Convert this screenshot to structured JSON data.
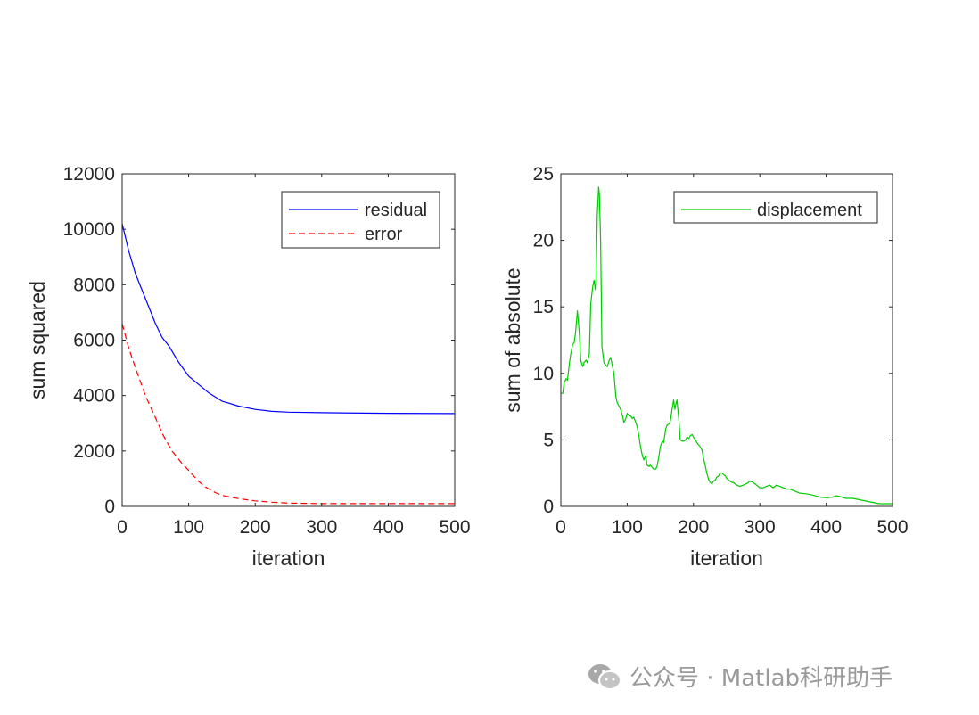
{
  "chart_data": [
    {
      "type": "line",
      "xlabel": "iteration",
      "ylabel": "sum squared",
      "xlim": [
        0,
        500
      ],
      "ylim": [
        0,
        12000
      ],
      "xticks": [
        0,
        100,
        200,
        300,
        400,
        500
      ],
      "yticks": [
        0,
        2000,
        4000,
        6000,
        8000,
        10000,
        12000
      ],
      "grid": false,
      "legend": "top-right",
      "series": [
        {
          "name": "residual",
          "color": "#0000ff",
          "style": "solid",
          "x": [
            0,
            10,
            20,
            35,
            50,
            60,
            70,
            85,
            100,
            115,
            130,
            150,
            175,
            200,
            225,
            250,
            300,
            400,
            500
          ],
          "y": [
            10200,
            9200,
            8400,
            7500,
            6600,
            6100,
            5800,
            5200,
            4700,
            4400,
            4100,
            3800,
            3620,
            3500,
            3430,
            3400,
            3380,
            3360,
            3350
          ]
        },
        {
          "name": "error",
          "color": "#ff0000",
          "style": "dashed",
          "x": [
            0,
            10,
            20,
            35,
            50,
            62,
            75,
            90,
            100,
            115,
            125,
            140,
            150,
            175,
            200,
            225,
            250,
            300,
            400,
            500
          ],
          "y": [
            6600,
            5700,
            5000,
            4000,
            3200,
            2550,
            2000,
            1550,
            1300,
            900,
            700,
            500,
            400,
            280,
            200,
            150,
            120,
            100,
            100,
            100
          ]
        }
      ]
    },
    {
      "type": "line",
      "xlabel": "iteration",
      "ylabel": "sum of absolute",
      "xlim": [
        0,
        500
      ],
      "ylim": [
        0,
        25
      ],
      "xticks": [
        0,
        100,
        200,
        300,
        400,
        500
      ],
      "yticks": [
        0,
        5,
        10,
        15,
        20,
        25
      ],
      "grid": false,
      "legend": "top-right",
      "series": [
        {
          "name": "displacement",
          "color": "#00cc00",
          "style": "solid",
          "x": [
            0,
            3,
            5,
            8,
            10,
            13,
            15,
            18,
            20,
            22,
            25,
            28,
            30,
            33,
            35,
            38,
            40,
            43,
            45,
            48,
            50,
            52,
            53,
            55,
            57,
            58,
            60,
            62,
            65,
            68,
            70,
            73,
            75,
            78,
            80,
            83,
            85,
            88,
            90,
            93,
            95,
            98,
            100,
            103,
            105,
            108,
            110,
            113,
            115,
            118,
            120,
            123,
            125,
            128,
            130,
            133,
            135,
            138,
            140,
            143,
            145,
            148,
            150,
            153,
            155,
            158,
            160,
            163,
            165,
            168,
            170,
            172,
            173,
            175,
            178,
            180,
            183,
            185,
            188,
            190,
            193,
            195,
            198,
            200,
            203,
            205,
            208,
            210,
            213,
            215,
            218,
            220,
            223,
            225,
            228,
            230,
            233,
            235,
            238,
            240,
            243,
            245,
            248,
            250,
            253,
            255,
            258,
            260,
            265,
            270,
            275,
            280,
            285,
            290,
            295,
            300,
            305,
            310,
            315,
            320,
            325,
            330,
            335,
            340,
            345,
            350,
            360,
            370,
            380,
            390,
            400,
            410,
            415,
            420,
            430,
            440,
            450,
            460,
            470,
            480,
            490,
            500
          ],
          "y": [
            8.5,
            8.5,
            9.3,
            9.6,
            9.5,
            10.8,
            11.5,
            12.2,
            12.3,
            13,
            14.7,
            13,
            11,
            10.5,
            10.8,
            11,
            10.8,
            11.5,
            15.2,
            16.5,
            17,
            16.3,
            16.8,
            22,
            24,
            23.5,
            20,
            12,
            10.8,
            10.6,
            10.5,
            11,
            11.2,
            10.5,
            10,
            8.2,
            7.8,
            7.5,
            7.3,
            6.8,
            6.3,
            6.6,
            7,
            6.8,
            6.8,
            6.6,
            6.7,
            6.3,
            6,
            5.2,
            4.5,
            3.8,
            3.5,
            3.8,
            3.1,
            3,
            3.1,
            2.9,
            2.8,
            2.8,
            3,
            3.8,
            4.5,
            4.9,
            4.8,
            5.8,
            6.1,
            6.2,
            6.4,
            7.4,
            8.0,
            7.3,
            7.6,
            8.0,
            6.5,
            5,
            4.9,
            4.9,
            5,
            5.2,
            5.1,
            5.3,
            5.4,
            5.2,
            5.0,
            4.8,
            4.6,
            4.5,
            4.2,
            3.6,
            3,
            2.5,
            2,
            1.8,
            1.7,
            1.9,
            2,
            2.2,
            2.3,
            2.5,
            2.5,
            2.4,
            2.3,
            2.1,
            2,
            1.9,
            1.8,
            1.8,
            1.6,
            1.5,
            1.6,
            1.7,
            1.9,
            1.8,
            1.6,
            1.4,
            1.4,
            1.5,
            1.6,
            1.4,
            1.6,
            1.5,
            1.4,
            1.3,
            1.3,
            1.2,
            1.0,
            0.95,
            0.85,
            0.7,
            0.65,
            0.7,
            0.8,
            0.75,
            0.6,
            0.6,
            0.5,
            0.4,
            0.3,
            0.2,
            0.2,
            0.2
          ]
        }
      ]
    }
  ],
  "watermark": {
    "text": "公众号 · Matlab科研助手",
    "icon": "wechat-icon"
  }
}
